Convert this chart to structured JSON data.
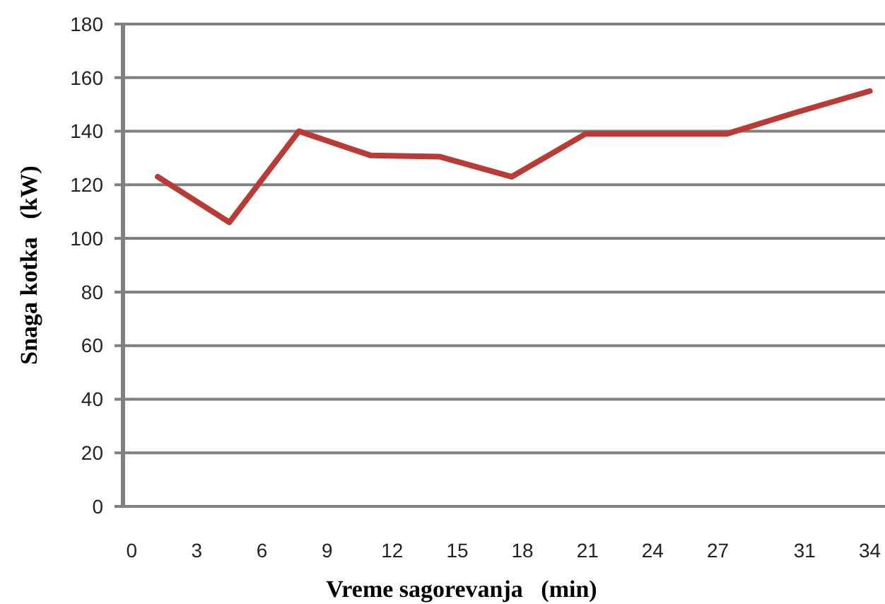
{
  "chart_data": {
    "type": "line",
    "xlabel": "Vreme sagorevanja   (min)",
    "ylabel": "Snaga kotka   (kW)",
    "x": [
      1.2,
      4.5,
      7.7,
      11.0,
      14.2,
      17.5,
      20.9,
      24.1,
      27.4,
      30.6,
      34.0
    ],
    "series": [
      {
        "color": "#b83b35",
        "values": [
          123,
          106,
          140,
          131,
          130.5,
          123,
          139,
          139,
          139,
          147,
          155
        ]
      }
    ],
    "xlim": [
      -0.4,
      34.7
    ],
    "xticks": [
      0,
      3,
      6,
      9,
      12,
      15,
      18,
      21,
      24,
      27,
      31,
      34
    ],
    "ylim": [
      0,
      180
    ],
    "yticks": [
      0,
      20,
      40,
      60,
      80,
      100,
      120,
      140,
      160,
      180
    ],
    "grid": "y",
    "marker": "none",
    "line_style": "solid"
  }
}
